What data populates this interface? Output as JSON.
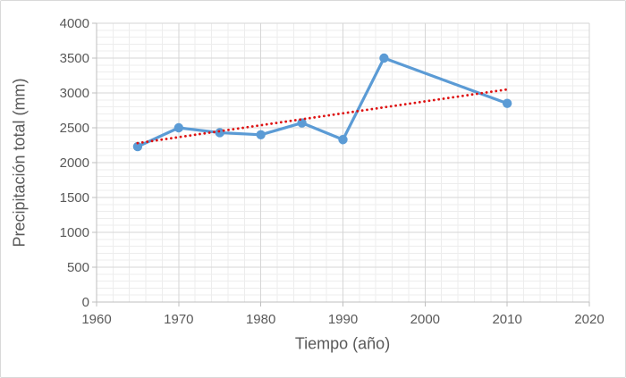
{
  "window": {
    "background": "#FFFFFF",
    "border_color": "#D9D9D9"
  },
  "chart_data": {
    "type": "line",
    "title": "",
    "xlabel": "Tiempo (año)",
    "ylabel": "Precipitación total (mm)",
    "x": [
      1965,
      1970,
      1975,
      1980,
      1985,
      1990,
      1995,
      2010
    ],
    "series": [
      {
        "name": "Precipitación total",
        "values": [
          2230,
          2500,
          2430,
          2400,
          2570,
          2330,
          3500,
          2850
        ],
        "color": "#5B9BD5",
        "marker": "circle",
        "line_width": 3.2,
        "marker_radius": 5.2
      }
    ],
    "trendline": {
      "type": "linear",
      "style": "dotted",
      "color": "#DE1212",
      "x": [
        1965,
        2010
      ],
      "y": [
        2280,
        3050
      ]
    },
    "xlim": [
      1960,
      2020
    ],
    "ylim": [
      0,
      4000
    ],
    "x_ticks": [
      "1960",
      "1970",
      "1980",
      "1990",
      "2000",
      "2010",
      "2020"
    ],
    "x_tick_values": [
      1960,
      1970,
      1980,
      1990,
      2000,
      2010,
      2020
    ],
    "y_ticks": [
      "0",
      "500",
      "1000",
      "1500",
      "2000",
      "2500",
      "3000",
      "3500",
      "4000"
    ],
    "y_tick_values": [
      0,
      500,
      1000,
      1500,
      2000,
      2500,
      3000,
      3500,
      4000
    ],
    "x_minor_step": 2,
    "y_minor_step": 100,
    "grid": {
      "show_minor": true,
      "major_color": "#D6D6D6",
      "minor_color": "#EDEDED"
    },
    "axis": {
      "line_color": "#BFBFBF",
      "tick_color": "#BFBFBF",
      "label_color": "#595959",
      "tick_length": 5
    },
    "legend": "none"
  }
}
